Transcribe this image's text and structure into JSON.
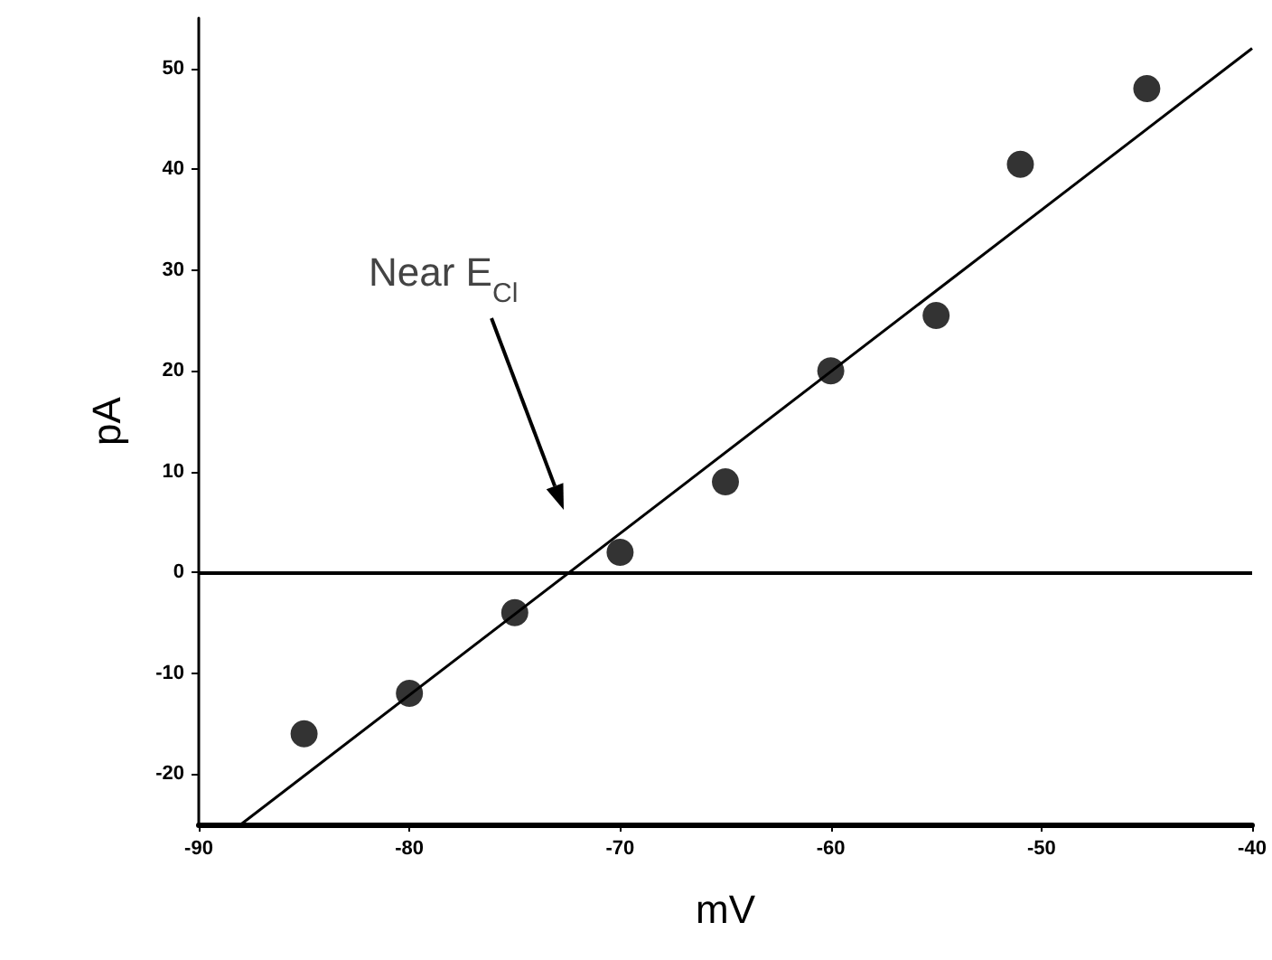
{
  "chart_data": {
    "type": "scatter",
    "xlabel": "mV",
    "ylabel": "pA",
    "xlim": [
      -90,
      -40
    ],
    "ylim": [
      -25,
      55
    ],
    "xticks": [
      -90,
      -80,
      -70,
      -60,
      -50,
      -40
    ],
    "yticks": [
      -20,
      -10,
      0,
      10,
      20,
      30,
      40,
      50
    ],
    "grid": false,
    "series": [
      {
        "color": "#000000",
        "marker": "circle",
        "x": [
          -85,
          -80,
          -75,
          -70,
          -65,
          -60,
          -55,
          -51,
          -45
        ],
        "values": [
          -16,
          -12,
          -4,
          2,
          9,
          20,
          25.5,
          40.5,
          48
        ]
      },
      {
        "type": "line",
        "color": "#000000",
        "marker": "none",
        "line_style": "solid",
        "x": [
          -88,
          -40
        ],
        "values": [
          -25,
          52
        ]
      }
    ],
    "ref_lines": [
      {
        "axis": "y",
        "value": 0,
        "color": "#000000",
        "line_style": "solid"
      }
    ],
    "annotations": [
      "Near E$_{Cl}$"
    ]
  }
}
